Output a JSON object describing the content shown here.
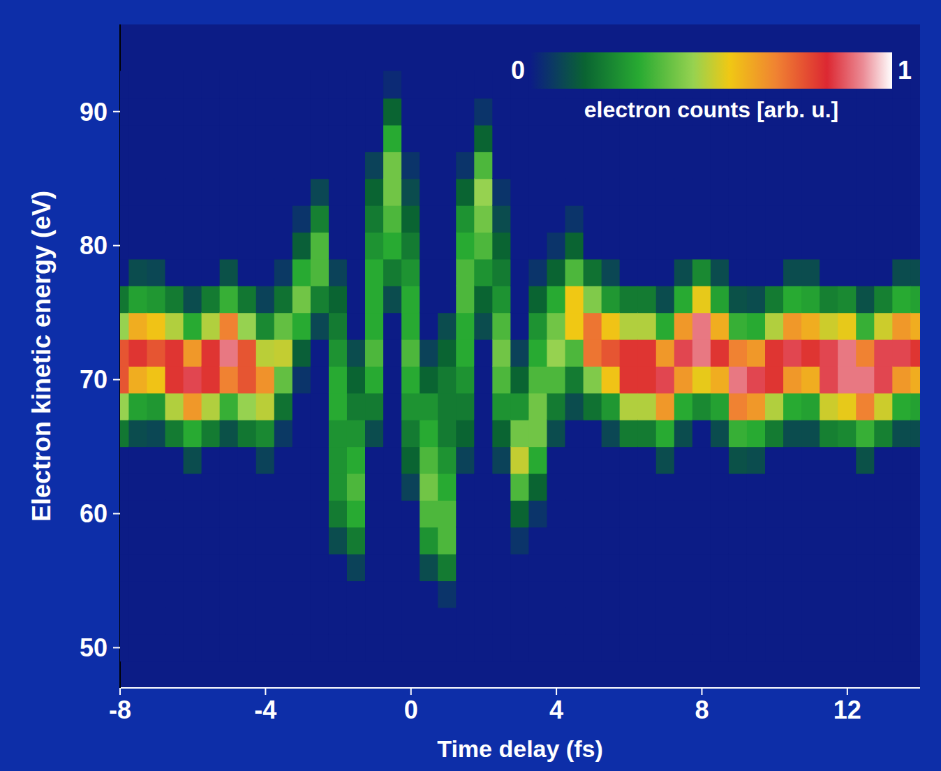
{
  "chart_data": {
    "type": "heatmap",
    "x_label": "Time delay (fs)",
    "y_label": "Electron kinetic energy (eV)",
    "xlim": [
      -8,
      14
    ],
    "ylim": [
      47,
      96.5
    ],
    "xticks": [
      -8,
      -4,
      0,
      4,
      8,
      12
    ],
    "yticks": [
      50,
      60,
      70,
      80,
      90
    ],
    "x": [
      -8,
      -7.5,
      -7,
      -6.5,
      -6,
      -5.5,
      -5,
      -4.5,
      -4,
      -3.5,
      -3,
      -2.5,
      -2,
      -1.5,
      -1,
      -0.5,
      0,
      0.5,
      1,
      1.5,
      2,
      2.5,
      3,
      3.5,
      4,
      4.5,
      5,
      5.5,
      6,
      6.5,
      7,
      7.5,
      8,
      8.5,
      9,
      9.5,
      10,
      10.5,
      11,
      11.5,
      12,
      12.5,
      13,
      13.5,
      14
    ],
    "y": [
      50,
      52,
      54,
      56,
      58,
      60,
      62,
      64,
      66,
      68,
      70,
      72,
      74,
      76,
      78,
      80,
      82,
      84,
      86,
      88,
      90,
      92
    ],
    "z": [
      [
        0,
        0,
        0,
        0,
        0,
        0,
        0,
        0,
        0.19,
        0.45,
        0.75,
        0.75,
        0.45,
        0.19,
        0,
        0,
        0,
        0,
        0,
        0,
        0,
        0
      ],
      [
        0,
        0,
        0,
        0,
        0,
        0,
        0,
        0,
        0.1,
        0.28,
        0.6,
        0.8,
        0.6,
        0.28,
        0.1,
        0,
        0,
        0,
        0,
        0,
        0,
        0
      ],
      [
        0,
        0,
        0,
        0,
        0,
        0,
        0,
        0,
        0.09,
        0.26,
        0.56,
        0.75,
        0.56,
        0.26,
        0.09,
        0,
        0,
        0,
        0,
        0,
        0,
        0
      ],
      [
        0,
        0,
        0,
        0,
        0,
        0,
        0,
        0,
        0.2,
        0.48,
        0.8,
        0.8,
        0.48,
        0.2,
        0,
        0,
        0,
        0,
        0,
        0,
        0,
        0
      ],
      [
        0,
        0,
        0,
        0,
        0,
        0,
        0,
        0.1,
        0.3,
        0.64,
        0.85,
        0.64,
        0.3,
        0.1,
        0,
        0,
        0,
        0,
        0,
        0,
        0,
        0
      ],
      [
        0,
        0,
        0,
        0,
        0,
        0,
        0,
        0,
        0.2,
        0.48,
        0.8,
        0.8,
        0.48,
        0.2,
        0,
        0,
        0,
        0,
        0,
        0,
        0,
        0
      ],
      [
        0,
        0,
        0,
        0,
        0,
        0,
        0,
        0,
        0.11,
        0.32,
        0.68,
        0.9,
        0.68,
        0.32,
        0.11,
        0,
        0,
        0,
        0,
        0,
        0,
        0
      ],
      [
        0,
        0,
        0,
        0,
        0,
        0,
        0,
        0,
        0.19,
        0.45,
        0.75,
        0.75,
        0.45,
        0.19,
        0,
        0,
        0,
        0,
        0,
        0,
        0,
        0
      ],
      [
        0,
        0,
        0,
        0,
        0,
        0,
        0,
        0.08,
        0.23,
        0.49,
        0.65,
        0.49,
        0.23,
        0.08,
        0,
        0,
        0,
        0,
        0,
        0,
        0,
        0
      ],
      [
        0,
        0,
        0,
        0,
        0,
        0,
        0,
        0,
        0.06,
        0.18,
        0.38,
        0.5,
        0.38,
        0.18,
        0.06,
        0,
        0,
        0,
        0,
        0,
        0,
        0
      ],
      [
        0,
        0,
        0,
        0,
        0,
        0,
        0,
        0,
        0,
        0,
        0.05,
        0.14,
        0.3,
        0.4,
        0.3,
        0.14,
        0.05,
        0,
        0,
        0,
        0,
        0
      ],
      [
        0,
        0,
        0,
        0,
        0,
        0,
        0,
        0,
        0,
        0,
        0,
        0,
        0.09,
        0.21,
        0.35,
        0.35,
        0.21,
        0.09,
        0,
        0,
        0,
        0
      ],
      [
        0,
        0,
        0,
        0,
        0.1,
        0.2,
        0.25,
        0.25,
        0.25,
        0.3,
        0.3,
        0.25,
        0.2,
        0.15,
        0.08,
        0,
        0,
        0,
        0,
        0,
        0,
        0
      ],
      [
        0,
        0,
        0,
        0.08,
        0.2,
        0.3,
        0.35,
        0.3,
        0.25,
        0.2,
        0.15,
        0.1,
        0,
        0,
        0,
        0,
        0,
        0,
        0,
        0,
        0,
        0
      ],
      [
        0,
        0,
        0,
        0,
        0,
        0,
        0,
        0,
        0.1,
        0.2,
        0.3,
        0.35,
        0.3,
        0.3,
        0.3,
        0.25,
        0.2,
        0.15,
        0.08,
        0,
        0,
        0
      ],
      [
        0,
        0,
        0,
        0,
        0,
        0,
        0,
        0,
        0,
        0,
        0,
        0,
        0,
        0.1,
        0.2,
        0.3,
        0.35,
        0.4,
        0.4,
        0.3,
        0.15,
        0.03
      ],
      [
        0,
        0,
        0,
        0,
        0,
        0,
        0.08,
        0.15,
        0.2,
        0.25,
        0.3,
        0.35,
        0.3,
        0.3,
        0.25,
        0.2,
        0.15,
        0.1,
        0.05,
        0,
        0,
        0
      ],
      [
        0,
        0,
        0,
        0.1,
        0.25,
        0.35,
        0.4,
        0.35,
        0.3,
        0.25,
        0.15,
        0.08,
        0,
        0,
        0,
        0,
        0,
        0,
        0,
        0,
        0,
        0
      ],
      [
        0,
        0,
        0.05,
        0.2,
        0.35,
        0.35,
        0.3,
        0.25,
        0.2,
        0.2,
        0.2,
        0.15,
        0.1,
        0,
        0,
        0,
        0,
        0,
        0,
        0,
        0,
        0
      ],
      [
        0,
        0,
        0,
        0,
        0,
        0,
        0,
        0.08,
        0.15,
        0.2,
        0.25,
        0.3,
        0.3,
        0.35,
        0.35,
        0.3,
        0.25,
        0.15,
        0.05,
        0,
        0,
        0
      ],
      [
        0,
        0,
        0,
        0,
        0,
        0,
        0,
        0,
        0,
        0,
        0,
        0,
        0.1,
        0.15,
        0.25,
        0.35,
        0.4,
        0.45,
        0.35,
        0.15,
        0.05,
        0
      ],
      [
        0,
        0,
        0,
        0,
        0,
        0,
        0,
        0.08,
        0.15,
        0.25,
        0.35,
        0.4,
        0.35,
        0.25,
        0.2,
        0.15,
        0.1,
        0.05,
        0,
        0,
        0,
        0
      ],
      [
        0,
        0,
        0,
        0,
        0.05,
        0.15,
        0.35,
        0.5,
        0.4,
        0.25,
        0.15,
        0.08,
        0,
        0,
        0,
        0,
        0,
        0,
        0,
        0,
        0,
        0
      ],
      [
        0,
        0,
        0,
        0,
        0,
        0.05,
        0.15,
        0.3,
        0.4,
        0.4,
        0.35,
        0.3,
        0.25,
        0.15,
        0.05,
        0,
        0,
        0,
        0,
        0,
        0,
        0
      ],
      [
        0,
        0,
        0,
        0,
        0,
        0,
        0,
        0,
        0.1,
        0.2,
        0.35,
        0.45,
        0.4,
        0.3,
        0.15,
        0.05,
        0,
        0,
        0,
        0,
        0,
        0
      ],
      [
        0,
        0,
        0,
        0,
        0,
        0,
        0,
        0,
        0,
        0.1,
        0.2,
        0.35,
        0.55,
        0.55,
        0.35,
        0.15,
        0.05,
        0,
        0,
        0,
        0,
        0
      ],
      [
        0,
        0,
        0,
        0,
        0,
        0,
        0,
        0,
        0,
        0.18,
        0.42,
        0.7,
        0.7,
        0.42,
        0.18,
        0,
        0,
        0,
        0,
        0,
        0,
        0
      ],
      [
        0,
        0,
        0,
        0,
        0,
        0,
        0,
        0,
        0.09,
        0.26,
        0.56,
        0.75,
        0.56,
        0.26,
        0.09,
        0,
        0,
        0,
        0,
        0,
        0,
        0
      ],
      [
        0,
        0,
        0,
        0,
        0,
        0,
        0,
        0,
        0.2,
        0.48,
        0.8,
        0.8,
        0.48,
        0.2,
        0,
        0,
        0,
        0,
        0,
        0,
        0,
        0
      ],
      [
        0,
        0,
        0,
        0,
        0,
        0,
        0,
        0,
        0.2,
        0.48,
        0.8,
        0.8,
        0.48,
        0.2,
        0,
        0,
        0,
        0,
        0,
        0,
        0,
        0
      ],
      [
        0,
        0,
        0,
        0,
        0,
        0,
        0,
        0.1,
        0.3,
        0.64,
        0.85,
        0.64,
        0.3,
        0.1,
        0,
        0,
        0,
        0,
        0,
        0,
        0,
        0
      ],
      [
        0,
        0,
        0,
        0,
        0,
        0,
        0,
        0,
        0.1,
        0.3,
        0.64,
        0.85,
        0.64,
        0.3,
        0.1,
        0,
        0,
        0,
        0,
        0,
        0,
        0
      ],
      [
        0,
        0,
        0,
        0,
        0,
        0,
        0,
        0,
        0,
        0.23,
        0.54,
        0.9,
        0.9,
        0.54,
        0.23,
        0,
        0,
        0,
        0,
        0,
        0,
        0
      ],
      [
        0,
        0,
        0,
        0,
        0,
        0,
        0,
        0,
        0.1,
        0.28,
        0.6,
        0.8,
        0.6,
        0.28,
        0.1,
        0,
        0,
        0,
        0,
        0,
        0,
        0
      ],
      [
        0,
        0,
        0,
        0,
        0,
        0,
        0,
        0.11,
        0.32,
        0.68,
        0.9,
        0.68,
        0.32,
        0.11,
        0,
        0,
        0,
        0,
        0,
        0,
        0,
        0
      ],
      [
        0,
        0,
        0,
        0,
        0,
        0,
        0,
        0.1,
        0.3,
        0.64,
        0.85,
        0.64,
        0.3,
        0.1,
        0,
        0,
        0,
        0,
        0,
        0,
        0,
        0
      ],
      [
        0,
        0,
        0,
        0,
        0,
        0,
        0,
        0,
        0.2,
        0.48,
        0.8,
        0.8,
        0.48,
        0.2,
        0,
        0,
        0,
        0,
        0,
        0,
        0,
        0
      ],
      [
        0,
        0,
        0,
        0,
        0,
        0,
        0,
        0,
        0.1,
        0.3,
        0.64,
        0.85,
        0.64,
        0.3,
        0.1,
        0,
        0,
        0,
        0,
        0,
        0,
        0
      ],
      [
        0,
        0,
        0,
        0,
        0,
        0,
        0,
        0,
        0.1,
        0.28,
        0.6,
        0.8,
        0.6,
        0.28,
        0.1,
        0,
        0,
        0,
        0,
        0,
        0,
        0
      ],
      [
        0,
        0,
        0,
        0,
        0,
        0,
        0,
        0,
        0.21,
        0.51,
        0.85,
        0.85,
        0.51,
        0.21,
        0,
        0,
        0,
        0,
        0,
        0,
        0,
        0
      ],
      [
        0,
        0,
        0,
        0,
        0,
        0,
        0,
        0,
        0.23,
        0.54,
        0.9,
        0.9,
        0.54,
        0.23,
        0,
        0,
        0,
        0,
        0,
        0,
        0,
        0
      ],
      [
        0,
        0,
        0,
        0,
        0,
        0,
        0,
        0.11,
        0.32,
        0.68,
        0.9,
        0.68,
        0.32,
        0.11,
        0,
        0,
        0,
        0,
        0,
        0,
        0,
        0
      ],
      [
        0,
        0,
        0,
        0,
        0,
        0,
        0,
        0,
        0.21,
        0.51,
        0.85,
        0.85,
        0.51,
        0.21,
        0,
        0,
        0,
        0,
        0,
        0,
        0,
        0
      ],
      [
        0,
        0,
        0,
        0,
        0,
        0,
        0,
        0,
        0.1,
        0.3,
        0.64,
        0.85,
        0.64,
        0.3,
        0.1,
        0,
        0,
        0,
        0,
        0,
        0,
        0
      ],
      [
        0,
        0,
        0,
        0,
        0,
        0,
        0,
        0,
        0.1,
        0.28,
        0.6,
        0.8,
        0.6,
        0.28,
        0.1,
        0,
        0,
        0,
        0,
        0,
        0,
        0
      ]
    ],
    "colorbar": {
      "label": "electron counts [arb. u.]",
      "range": [
        0,
        1
      ],
      "ticks": [
        0,
        1
      ]
    }
  }
}
